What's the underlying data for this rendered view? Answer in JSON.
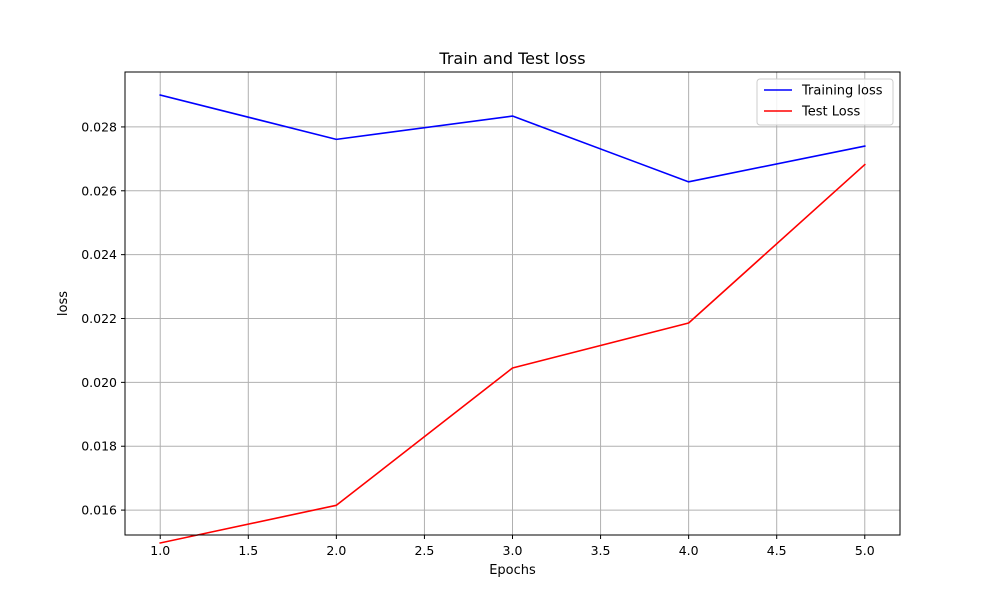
{
  "chart_data": {
    "type": "line",
    "title": "Train and Test loss",
    "xlabel": "Epochs",
    "ylabel": "loss",
    "xlim": [
      0.8,
      5.2
    ],
    "ylim": [
      0.01522,
      0.02972
    ],
    "xticks": [
      1.0,
      1.5,
      2.0,
      2.5,
      3.0,
      3.5,
      4.0,
      4.5,
      5.0
    ],
    "xtick_labels": [
      "1.0",
      "1.5",
      "2.0",
      "2.5",
      "3.0",
      "3.5",
      "4.0",
      "4.5",
      "5.0"
    ],
    "yticks": [
      0.016,
      0.018,
      0.02,
      0.022,
      0.024,
      0.026,
      0.028
    ],
    "ytick_labels": [
      "0.016",
      "0.018",
      "0.020",
      "0.022",
      "0.024",
      "0.026",
      "0.028"
    ],
    "grid": true,
    "legend_position": "top-right",
    "x": [
      1,
      2,
      3,
      4,
      5
    ],
    "series": [
      {
        "name": "Training loss",
        "color": "#0000ff",
        "values": [
          0.029,
          0.02761,
          0.02834,
          0.02628,
          0.0274
        ]
      },
      {
        "name": "Test Loss",
        "color": "#ff0000",
        "values": [
          0.01497,
          0.01615,
          0.02045,
          0.02186,
          0.02682
        ]
      }
    ]
  }
}
